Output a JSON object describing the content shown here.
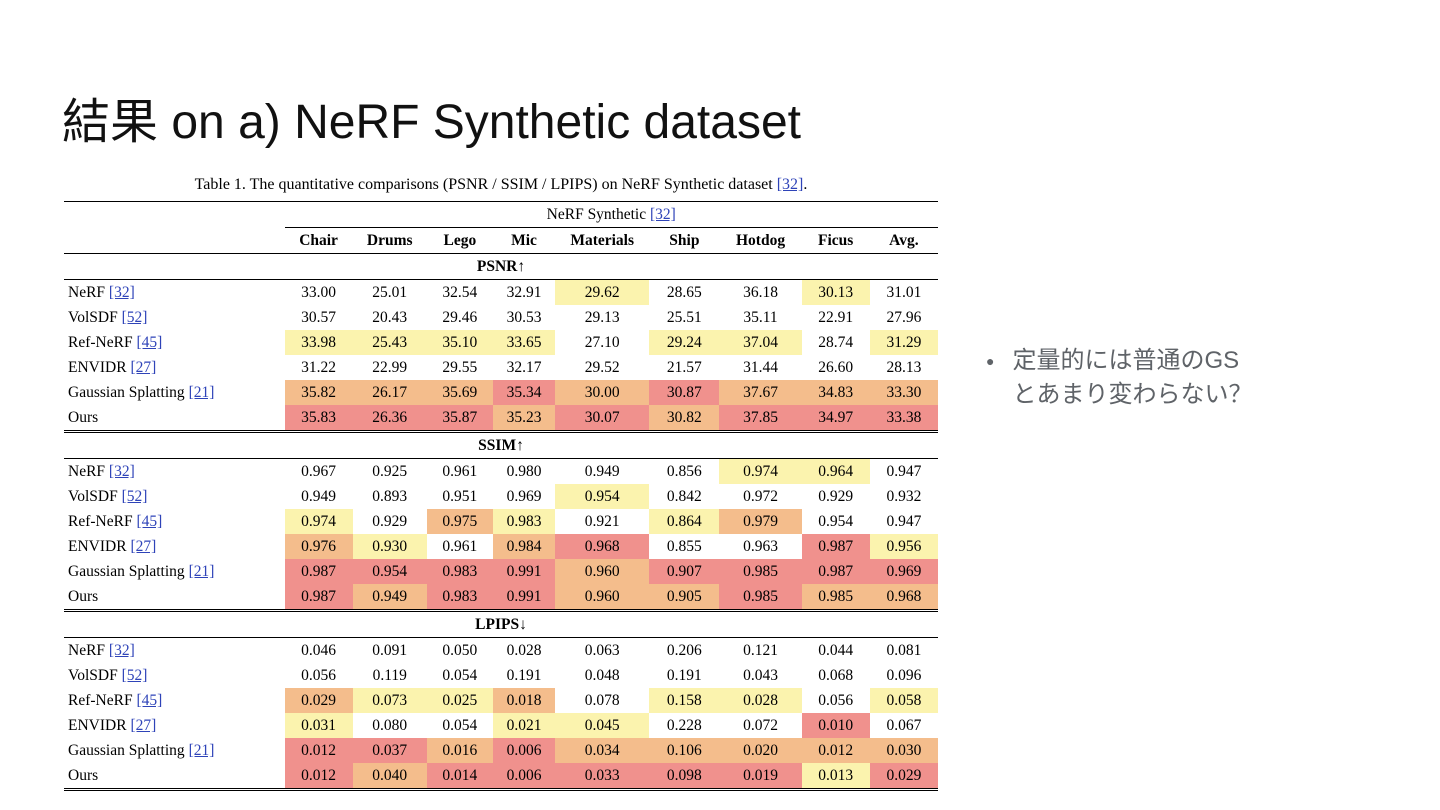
{
  "slide": {
    "title": "結果 on a) NeRF Synthetic dataset",
    "bullet_marker": "●",
    "bullet_lines": [
      "定量的には普通のGS",
      "とあまり変わらない？"
    ]
  },
  "colors": {
    "best": "#f0918d",
    "second": "#f4bd8c",
    "third": "#fbf3ae",
    "cite": "#2e43b8"
  },
  "table": {
    "caption_prefix": "Table 1. The quantitative comparisons (PSNR / SSIM / LPIPS) on NeRF Synthetic dataset ",
    "caption_cite": "[32]",
    "caption_suffix": ".",
    "group_header": "NeRF Synthetic ",
    "group_header_cite": "[32]",
    "columns": [
      "Chair",
      "Drums",
      "Lego",
      "Mic",
      "Materials",
      "Ship",
      "Hotdog",
      "Ficus",
      "Avg."
    ],
    "sections": [
      {
        "label": "PSNR↑",
        "rows": [
          {
            "method": "NeRF",
            "cite": "[32]",
            "values": [
              "33.00",
              "25.01",
              "32.54",
              "32.91",
              "29.62",
              "28.65",
              "36.18",
              "30.13",
              "31.01"
            ],
            "marks": [
              "",
              "",
              "",
              "",
              "y",
              "",
              "",
              "y",
              ""
            ]
          },
          {
            "method": "VolSDF",
            "cite": "[52]",
            "values": [
              "30.57",
              "20.43",
              "29.46",
              "30.53",
              "29.13",
              "25.51",
              "35.11",
              "22.91",
              "27.96"
            ],
            "marks": [
              "",
              "",
              "",
              "",
              "",
              "",
              "",
              "",
              ""
            ]
          },
          {
            "method": "Ref-NeRF",
            "cite": "[45]",
            "values": [
              "33.98",
              "25.43",
              "35.10",
              "33.65",
              "27.10",
              "29.24",
              "37.04",
              "28.74",
              "31.29"
            ],
            "marks": [
              "y",
              "y",
              "y",
              "y",
              "",
              "y",
              "y",
              "",
              "y"
            ]
          },
          {
            "method": "ENVIDR",
            "cite": "[27]",
            "values": [
              "31.22",
              "22.99",
              "29.55",
              "32.17",
              "29.52",
              "21.57",
              "31.44",
              "26.60",
              "28.13"
            ],
            "marks": [
              "",
              "",
              "",
              "",
              "",
              "",
              "",
              "",
              ""
            ]
          },
          {
            "method": "Gaussian Splatting",
            "cite": "[21]",
            "values": [
              "35.82",
              "26.17",
              "35.69",
              "35.34",
              "30.00",
              "30.87",
              "37.67",
              "34.83",
              "33.30"
            ],
            "marks": [
              "o",
              "o",
              "o",
              "r",
              "o",
              "r",
              "o",
              "o",
              "o"
            ]
          },
          {
            "method": "Ours",
            "cite": "",
            "values": [
              "35.83",
              "26.36",
              "35.87",
              "35.23",
              "30.07",
              "30.82",
              "37.85",
              "34.97",
              "33.38"
            ],
            "marks": [
              "r",
              "r",
              "r",
              "o",
              "r",
              "o",
              "r",
              "r",
              "r"
            ]
          }
        ]
      },
      {
        "label": "SSIM↑",
        "rows": [
          {
            "method": "NeRF",
            "cite": "[32]",
            "values": [
              "0.967",
              "0.925",
              "0.961",
              "0.980",
              "0.949",
              "0.856",
              "0.974",
              "0.964",
              "0.947"
            ],
            "marks": [
              "",
              "",
              "",
              "",
              "",
              "",
              "y",
              "y",
              ""
            ]
          },
          {
            "method": "VolSDF",
            "cite": "[52]",
            "values": [
              "0.949",
              "0.893",
              "0.951",
              "0.969",
              "0.954",
              "0.842",
              "0.972",
              "0.929",
              "0.932"
            ],
            "marks": [
              "",
              "",
              "",
              "",
              "y",
              "",
              "",
              "",
              ""
            ]
          },
          {
            "method": "Ref-NeRF",
            "cite": "[45]",
            "values": [
              "0.974",
              "0.929",
              "0.975",
              "0.983",
              "0.921",
              "0.864",
              "0.979",
              "0.954",
              "0.947"
            ],
            "marks": [
              "y",
              "",
              "o",
              "y",
              "",
              "y",
              "o",
              "",
              ""
            ]
          },
          {
            "method": "ENVIDR",
            "cite": "[27]",
            "values": [
              "0.976",
              "0.930",
              "0.961",
              "0.984",
              "0.968",
              "0.855",
              "0.963",
              "0.987",
              "0.956"
            ],
            "marks": [
              "o",
              "y",
              "",
              "o",
              "r",
              "",
              "",
              "r",
              "y"
            ]
          },
          {
            "method": "Gaussian Splatting",
            "cite": "[21]",
            "values": [
              "0.987",
              "0.954",
              "0.983",
              "0.991",
              "0.960",
              "0.907",
              "0.985",
              "0.987",
              "0.969"
            ],
            "marks": [
              "r",
              "r",
              "r",
              "r",
              "o",
              "r",
              "r",
              "r",
              "r"
            ]
          },
          {
            "method": "Ours",
            "cite": "",
            "values": [
              "0.987",
              "0.949",
              "0.983",
              "0.991",
              "0.960",
              "0.905",
              "0.985",
              "0.985",
              "0.968"
            ],
            "marks": [
              "r",
              "o",
              "r",
              "r",
              "o",
              "o",
              "r",
              "o",
              "o"
            ]
          }
        ]
      },
      {
        "label": "LPIPS↓",
        "rows": [
          {
            "method": "NeRF",
            "cite": "[32]",
            "values": [
              "0.046",
              "0.091",
              "0.050",
              "0.028",
              "0.063",
              "0.206",
              "0.121",
              "0.044",
              "0.081"
            ],
            "marks": [
              "",
              "",
              "",
              "",
              "",
              "",
              "",
              "",
              ""
            ]
          },
          {
            "method": "VolSDF",
            "cite": "[52]",
            "values": [
              "0.056",
              "0.119",
              "0.054",
              "0.191",
              "0.048",
              "0.191",
              "0.043",
              "0.068",
              "0.096"
            ],
            "marks": [
              "",
              "",
              "",
              "",
              "",
              "",
              "",
              "",
              ""
            ]
          },
          {
            "method": "Ref-NeRF",
            "cite": "[45]",
            "values": [
              "0.029",
              "0.073",
              "0.025",
              "0.018",
              "0.078",
              "0.158",
              "0.028",
              "0.056",
              "0.058"
            ],
            "marks": [
              "o",
              "y",
              "y",
              "o",
              "",
              "y",
              "y",
              "",
              "y"
            ]
          },
          {
            "method": "ENVIDR",
            "cite": "[27]",
            "values": [
              "0.031",
              "0.080",
              "0.054",
              "0.021",
              "0.045",
              "0.228",
              "0.072",
              "0.010",
              "0.067"
            ],
            "marks": [
              "y",
              "",
              "",
              "y",
              "y",
              "",
              "",
              "r",
              ""
            ]
          },
          {
            "method": "Gaussian Splatting",
            "cite": "[21]",
            "values": [
              "0.012",
              "0.037",
              "0.016",
              "0.006",
              "0.034",
              "0.106",
              "0.020",
              "0.012",
              "0.030"
            ],
            "marks": [
              "r",
              "r",
              "o",
              "r",
              "o",
              "o",
              "o",
              "o",
              "o"
            ]
          },
          {
            "method": "Ours",
            "cite": "",
            "values": [
              "0.012",
              "0.040",
              "0.014",
              "0.006",
              "0.033",
              "0.098",
              "0.019",
              "0.013",
              "0.029"
            ],
            "marks": [
              "r",
              "o",
              "r",
              "r",
              "r",
              "r",
              "r",
              "y",
              "r"
            ]
          }
        ]
      }
    ]
  }
}
